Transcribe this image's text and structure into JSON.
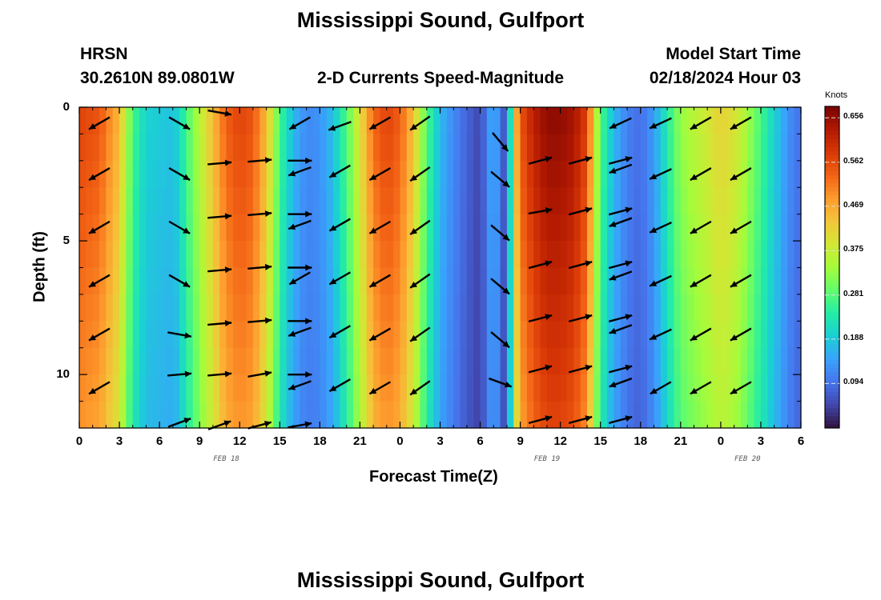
{
  "titles": {
    "top": "Mississippi Sound, Gulfport",
    "bottom": "Mississippi Sound, Gulfport",
    "model": "HRSN",
    "coords": "30.2610N  89.0801W",
    "product": "2-D Currents Speed-Magnitude",
    "start_label": "Model Start Time",
    "start_value": "02/18/2024 Hour 03"
  },
  "chart_data": {
    "type": "heatmap",
    "xlabel": "Forecast Time(Z)",
    "ylabel": "Depth (ft)",
    "x_tick_labels": [
      "0",
      "3",
      "6",
      "9",
      "12",
      "15",
      "18",
      "21",
      "0",
      "3",
      "6",
      "9",
      "12",
      "15",
      "18",
      "21",
      "0",
      "3",
      "6"
    ],
    "date_labels": [
      {
        "text": "FEB 18",
        "hour": 11
      },
      {
        "text": "FEB 19",
        "hour": 35
      },
      {
        "text": "FEB 20",
        "hour": 50
      }
    ],
    "y_tick_labels": [
      "0",
      "5",
      "10"
    ],
    "y_tick_values": [
      0,
      5,
      10
    ],
    "ylim": [
      0,
      12
    ],
    "xlim": [
      0,
      54
    ],
    "colorbar": {
      "label": "Knots",
      "ticks": [
        "0.656",
        "0.562",
        "0.469",
        "0.375",
        "0.281",
        "0.188",
        "0.094"
      ],
      "tick_values": [
        0.656,
        0.562,
        0.469,
        0.375,
        0.281,
        0.188,
        0.094
      ],
      "range": [
        0.0,
        0.68
      ],
      "colors": [
        "#30123b",
        "#4145ab",
        "#4675ed",
        "#39a2fc",
        "#1bcfd4",
        "#24eca6",
        "#61fc6c",
        "#a4fc3b",
        "#d1e834",
        "#f3c63a",
        "#fe9b2d",
        "#f36315",
        "#d93806",
        "#b11901",
        "#7a0403"
      ]
    },
    "speed_profile": {
      "hours": [
        0,
        1.5,
        3,
        4,
        5,
        6,
        7,
        7.5,
        8,
        9,
        10,
        11,
        12,
        13,
        14,
        15,
        16,
        17,
        18,
        19,
        20,
        21,
        22,
        23,
        24,
        25,
        26,
        27,
        28,
        29,
        30,
        31,
        32,
        32.5,
        33,
        34,
        35,
        36,
        37,
        38,
        38.5,
        39,
        40,
        41,
        42,
        43,
        44,
        45,
        46,
        47,
        48,
        49,
        50,
        51,
        52,
        53,
        54
      ],
      "speeds": [
        0.57,
        0.55,
        0.45,
        0.27,
        0.2,
        0.19,
        0.18,
        0.21,
        0.27,
        0.36,
        0.45,
        0.54,
        0.57,
        0.55,
        0.45,
        0.27,
        0.17,
        0.12,
        0.13,
        0.18,
        0.28,
        0.4,
        0.53,
        0.57,
        0.54,
        0.44,
        0.28,
        0.17,
        0.12,
        0.08,
        0.05,
        0.17,
        0.04,
        0.4,
        0.55,
        0.62,
        0.66,
        0.66,
        0.64,
        0.57,
        0.42,
        0.28,
        0.17,
        0.11,
        0.09,
        0.14,
        0.24,
        0.33,
        0.36,
        0.39,
        0.42,
        0.4,
        0.34,
        0.27,
        0.2,
        0.13,
        0.09
      ]
    },
    "arrows": [
      [
        1.5,
        0.6,
        210
      ],
      [
        1.5,
        2.5,
        210
      ],
      [
        1.5,
        4.5,
        210
      ],
      [
        1.5,
        6.5,
        210
      ],
      [
        1.5,
        8.5,
        210
      ],
      [
        1.5,
        10.5,
        210
      ],
      [
        7.5,
        0.6,
        330
      ],
      [
        7.5,
        2.5,
        330
      ],
      [
        7.5,
        4.5,
        330
      ],
      [
        7.5,
        6.5,
        330
      ],
      [
        7.5,
        8.5,
        350
      ],
      [
        7.5,
        10.0,
        5
      ],
      [
        7.5,
        11.8,
        20
      ],
      [
        10.5,
        0.2,
        350
      ],
      [
        10.5,
        2.1,
        5
      ],
      [
        10.5,
        4.1,
        5
      ],
      [
        10.5,
        6.1,
        5
      ],
      [
        10.5,
        8.1,
        5
      ],
      [
        10.5,
        10.0,
        5
      ],
      [
        10.5,
        11.9,
        20
      ],
      [
        13.5,
        2.0,
        5
      ],
      [
        13.5,
        4.0,
        5
      ],
      [
        13.5,
        6.0,
        5
      ],
      [
        13.5,
        8.0,
        5
      ],
      [
        13.5,
        10.0,
        10
      ],
      [
        13.5,
        11.9,
        15
      ],
      [
        16.5,
        0.6,
        210
      ],
      [
        16.5,
        2.4,
        200
      ],
      [
        16.5,
        4.4,
        200
      ],
      [
        16.5,
        6.4,
        210
      ],
      [
        16.5,
        8.4,
        200
      ],
      [
        16.5,
        10.4,
        200
      ],
      [
        16.5,
        2.0,
        0
      ],
      [
        16.5,
        4.0,
        0
      ],
      [
        16.5,
        6.0,
        0
      ],
      [
        16.5,
        8.0,
        0
      ],
      [
        16.5,
        10.0,
        0
      ],
      [
        16.5,
        11.9,
        10
      ],
      [
        19.5,
        0.7,
        200
      ],
      [
        19.5,
        2.4,
        210
      ],
      [
        19.5,
        4.4,
        210
      ],
      [
        19.5,
        6.4,
        210
      ],
      [
        19.5,
        8.4,
        210
      ],
      [
        19.5,
        10.4,
        210
      ],
      [
        22.5,
        0.6,
        210
      ],
      [
        22.5,
        2.5,
        210
      ],
      [
        22.5,
        4.5,
        210
      ],
      [
        22.5,
        6.5,
        210
      ],
      [
        22.5,
        8.5,
        210
      ],
      [
        22.5,
        10.5,
        210
      ],
      [
        25.5,
        0.6,
        215
      ],
      [
        25.5,
        2.5,
        215
      ],
      [
        25.5,
        4.5,
        215
      ],
      [
        25.5,
        6.5,
        215
      ],
      [
        25.5,
        8.5,
        215
      ],
      [
        25.5,
        10.5,
        215
      ],
      [
        31.5,
        1.3,
        310
      ],
      [
        31.5,
        2.7,
        320
      ],
      [
        31.5,
        4.7,
        320
      ],
      [
        31.5,
        6.7,
        320
      ],
      [
        31.5,
        8.7,
        320
      ],
      [
        31.5,
        10.3,
        340
      ],
      [
        34.5,
        2.0,
        15
      ],
      [
        34.5,
        3.9,
        10
      ],
      [
        34.5,
        5.9,
        15
      ],
      [
        34.5,
        7.9,
        15
      ],
      [
        34.5,
        9.8,
        15
      ],
      [
        34.5,
        11.7,
        15
      ],
      [
        37.5,
        2.0,
        15
      ],
      [
        37.5,
        3.9,
        15
      ],
      [
        37.5,
        5.9,
        15
      ],
      [
        37.5,
        7.9,
        15
      ],
      [
        37.5,
        9.8,
        15
      ],
      [
        37.5,
        11.7,
        15
      ],
      [
        40.5,
        0.6,
        205
      ],
      [
        40.5,
        2.3,
        200
      ],
      [
        40.5,
        4.3,
        200
      ],
      [
        40.5,
        6.3,
        200
      ],
      [
        40.5,
        8.3,
        200
      ],
      [
        40.5,
        10.3,
        200
      ],
      [
        40.5,
        2.0,
        15
      ],
      [
        40.5,
        3.9,
        15
      ],
      [
        40.5,
        5.9,
        15
      ],
      [
        40.5,
        7.9,
        15
      ],
      [
        40.5,
        9.8,
        15
      ],
      [
        40.5,
        11.7,
        15
      ],
      [
        43.5,
        0.6,
        205
      ],
      [
        43.5,
        2.5,
        205
      ],
      [
        43.5,
        4.5,
        205
      ],
      [
        43.5,
        6.5,
        205
      ],
      [
        43.5,
        8.5,
        205
      ],
      [
        43.5,
        10.5,
        210
      ],
      [
        46.5,
        0.6,
        210
      ],
      [
        46.5,
        2.5,
        210
      ],
      [
        46.5,
        4.5,
        210
      ],
      [
        46.5,
        6.5,
        210
      ],
      [
        46.5,
        8.5,
        210
      ],
      [
        46.5,
        10.5,
        210
      ],
      [
        49.5,
        0.6,
        210
      ],
      [
        49.5,
        2.5,
        210
      ],
      [
        49.5,
        4.5,
        210
      ],
      [
        49.5,
        6.5,
        210
      ],
      [
        49.5,
        8.5,
        210
      ],
      [
        49.5,
        10.5,
        210
      ]
    ]
  }
}
